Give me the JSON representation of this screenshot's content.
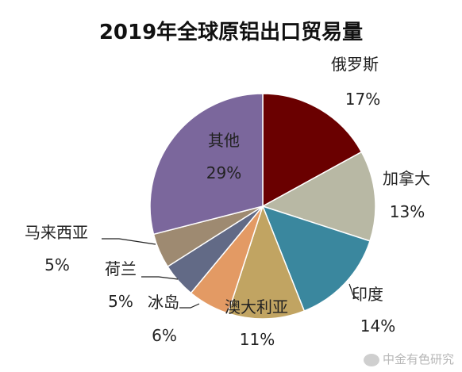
{
  "chart_data": {
    "type": "pie",
    "title": "2019年全球原铝出口贸易量",
    "slices": [
      {
        "label": "俄罗斯",
        "value": 17,
        "pct": "17%",
        "color": "#6a0000"
      },
      {
        "label": "加拿大",
        "value": 13,
        "pct": "13%",
        "color": "#b8b8a4"
      },
      {
        "label": "印度",
        "value": 14,
        "pct": "14%",
        "color": "#3a879e"
      },
      {
        "label": "澳大利亚",
        "value": 11,
        "pct": "11%",
        "color": "#c1a462"
      },
      {
        "label": "冰岛",
        "value": 6,
        "pct": "6%",
        "color": "#e39a64"
      },
      {
        "label": "荷兰",
        "value": 5,
        "pct": "5%",
        "color": "#626a86"
      },
      {
        "label": "马来西亚",
        "value": 5,
        "pct": "5%",
        "color": "#9e8a71"
      },
      {
        "label": "其他",
        "value": 29,
        "pct": "29%",
        "color": "#7b679c"
      }
    ]
  },
  "watermark": "中金有色研究"
}
